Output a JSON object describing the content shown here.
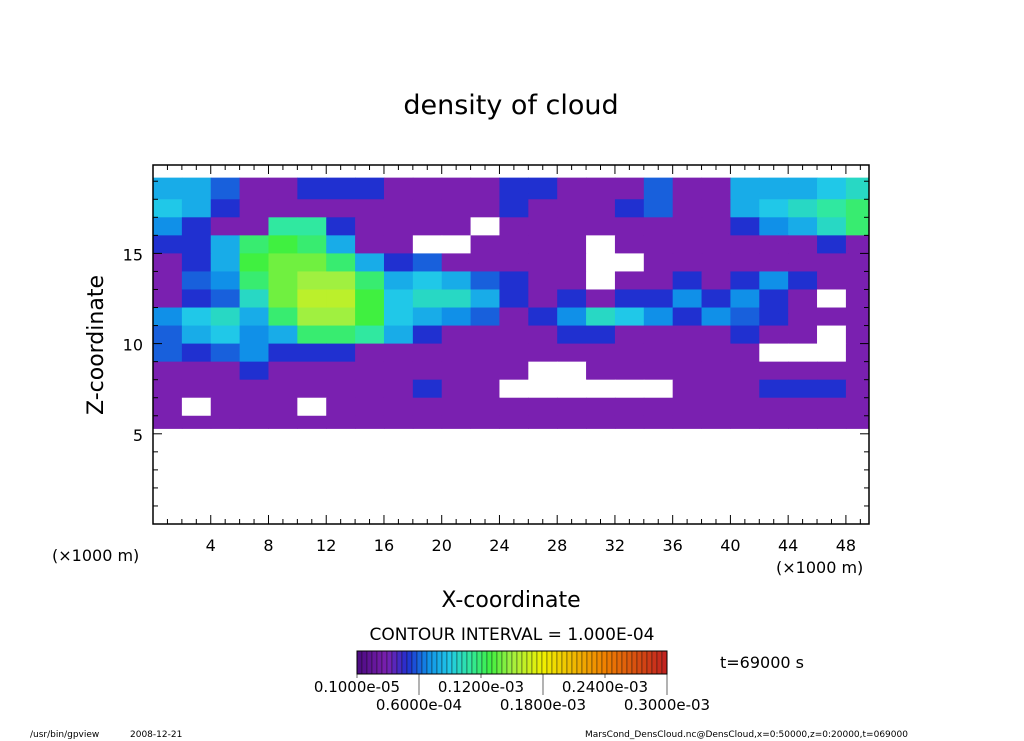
{
  "chart_data": {
    "type": "heatmap",
    "title": "density of cloud",
    "xlabel": "X-coordinate",
    "ylabel": "Z-coordinate",
    "x_unit_label": "(×1000 m)",
    "y_unit_label": "(×1000 m)",
    "xlim": [
      0,
      49.6
    ],
    "ylim": [
      0,
      19.9
    ],
    "x_ticks": [
      4,
      8,
      12,
      16,
      20,
      24,
      28,
      32,
      36,
      40,
      44,
      48
    ],
    "y_ticks": [
      5,
      10,
      15
    ],
    "contour_interval_label": "CONTOUR INTERVAL = 1.000E-04",
    "time_label": "t=69000 s",
    "colorbar": {
      "range": [
        1e-06,
        0.0003
      ],
      "tick_labels": [
        "0.1000e-05",
        "0.6000e-04",
        "0.1200e-03",
        "0.1800e-03",
        "0.2400e-03",
        "0.3000e-03"
      ],
      "colors": [
        "#4a0a80",
        "#7a20b0",
        "#2030d0",
        "#1090e8",
        "#20c8e8",
        "#30e8a0",
        "#40f040",
        "#a0f040",
        "#f0f000",
        "#f08000",
        "#c02020"
      ],
      "color_values": [
        1e-06,
        3e-05,
        5e-05,
        7e-05,
        9e-05,
        0.00011,
        0.00013,
        0.00015,
        0.00018,
        0.00024,
        0.0003
      ]
    },
    "grid": {
      "x_edges_start": 0,
      "x_step": 2,
      "z_rows_top": [
        19.2,
        18,
        17,
        16,
        15,
        14,
        13,
        12,
        11,
        10,
        9,
        8,
        7,
        6
      ],
      "z_rows_bottom": [
        18,
        17,
        16,
        15,
        14,
        13,
        12,
        11,
        10,
        9,
        8,
        7,
        6,
        5.3
      ],
      "values": [
        [
          8e-05,
          8e-05,
          6e-05,
          3e-05,
          3e-05,
          5e-05,
          5e-05,
          5e-05,
          3e-05,
          3e-05,
          3e-05,
          3e-05,
          5e-05,
          5e-05,
          3e-05,
          3e-05,
          3e-05,
          6e-05,
          3e-05,
          3e-05,
          8e-05,
          8e-05,
          8e-05,
          9e-05,
          0.0001
        ],
        [
          9e-05,
          8e-05,
          5e-05,
          3e-05,
          3e-05,
          3e-05,
          3e-05,
          3e-05,
          3e-05,
          3e-05,
          3e-05,
          3e-05,
          5e-05,
          3e-05,
          3e-05,
          3e-05,
          5e-05,
          6e-05,
          3e-05,
          3e-05,
          8e-05,
          9e-05,
          0.0001,
          0.00011,
          0.00012
        ],
        [
          7e-05,
          5e-05,
          3e-05,
          3e-05,
          0.00011,
          0.00011,
          5e-05,
          3e-05,
          3e-05,
          3e-05,
          3e-05,
          0,
          3e-05,
          3e-05,
          3e-05,
          3e-05,
          3e-05,
          3e-05,
          3e-05,
          3e-05,
          5e-05,
          7e-05,
          8e-05,
          0.0001,
          0.00012
        ],
        [
          5e-05,
          5e-05,
          8e-05,
          0.00012,
          0.00013,
          0.00012,
          8e-05,
          3e-05,
          3e-05,
          0,
          0,
          3e-05,
          3e-05,
          3e-05,
          3e-05,
          0,
          3e-05,
          3e-05,
          3e-05,
          3e-05,
          3e-05,
          3e-05,
          3e-05,
          5e-05,
          3e-05
        ],
        [
          3e-05,
          5e-05,
          8e-05,
          0.00013,
          0.00014,
          0.00014,
          0.00012,
          8e-05,
          5e-05,
          6e-05,
          3e-05,
          3e-05,
          3e-05,
          3e-05,
          3e-05,
          0,
          0,
          3e-05,
          3e-05,
          3e-05,
          3e-05,
          3e-05,
          3e-05,
          3e-05,
          3e-05
        ],
        [
          3e-05,
          6e-05,
          7e-05,
          0.00012,
          0.00014,
          0.00015,
          0.00015,
          0.00012,
          8e-05,
          9e-05,
          8e-05,
          6e-05,
          5e-05,
          3e-05,
          3e-05,
          0,
          3e-05,
          3e-05,
          5e-05,
          3e-05,
          5e-05,
          7e-05,
          5e-05,
          3e-05,
          3e-05
        ],
        [
          3e-05,
          5e-05,
          6e-05,
          0.0001,
          0.00014,
          0.00016,
          0.00016,
          0.00013,
          9e-05,
          0.0001,
          0.0001,
          8e-05,
          5e-05,
          3e-05,
          5e-05,
          3e-05,
          5e-05,
          5e-05,
          7e-05,
          5e-05,
          7e-05,
          5e-05,
          3e-05,
          0,
          3e-05
        ],
        [
          7e-05,
          9e-05,
          0.0001,
          8e-05,
          0.00012,
          0.00015,
          0.00015,
          0.00013,
          9e-05,
          8e-05,
          7e-05,
          6e-05,
          3e-05,
          5e-05,
          7e-05,
          0.0001,
          9e-05,
          7e-05,
          5e-05,
          7e-05,
          6e-05,
          5e-05,
          3e-05,
          3e-05,
          3e-05
        ],
        [
          6e-05,
          8e-05,
          9e-05,
          7e-05,
          8e-05,
          0.00012,
          0.00012,
          0.00011,
          8e-05,
          5e-05,
          3e-05,
          3e-05,
          3e-05,
          3e-05,
          5e-05,
          5e-05,
          3e-05,
          3e-05,
          3e-05,
          3e-05,
          5e-05,
          3e-05,
          3e-05,
          0,
          3e-05
        ],
        [
          6e-05,
          5e-05,
          6e-05,
          7e-05,
          5e-05,
          5e-05,
          5e-05,
          3e-05,
          3e-05,
          3e-05,
          3e-05,
          3e-05,
          3e-05,
          3e-05,
          3e-05,
          3e-05,
          3e-05,
          3e-05,
          3e-05,
          3e-05,
          3e-05,
          0,
          0,
          0,
          3e-05
        ],
        [
          3e-05,
          3e-05,
          3e-05,
          5e-05,
          3e-05,
          3e-05,
          3e-05,
          3e-05,
          3e-05,
          3e-05,
          3e-05,
          3e-05,
          3e-05,
          0,
          0,
          3e-05,
          3e-05,
          3e-05,
          3e-05,
          3e-05,
          3e-05,
          3e-05,
          3e-05,
          3e-05,
          3e-05
        ],
        [
          3e-05,
          3e-05,
          3e-05,
          3e-05,
          3e-05,
          3e-05,
          3e-05,
          3e-05,
          3e-05,
          5e-05,
          3e-05,
          3e-05,
          0,
          0,
          0,
          0,
          0,
          0,
          3e-05,
          3e-05,
          3e-05,
          5e-05,
          5e-05,
          5e-05,
          3e-05
        ],
        [
          3e-05,
          0,
          3e-05,
          3e-05,
          3e-05,
          0,
          3e-05,
          3e-05,
          3e-05,
          3e-05,
          3e-05,
          3e-05,
          3e-05,
          3e-05,
          3e-05,
          3e-05,
          3e-05,
          3e-05,
          3e-05,
          3e-05,
          3e-05,
          3e-05,
          3e-05,
          3e-05,
          3e-05
        ],
        [
          3e-05,
          3e-05,
          3e-05,
          3e-05,
          3e-05,
          3e-05,
          3e-05,
          3e-05,
          3e-05,
          3e-05,
          3e-05,
          3e-05,
          3e-05,
          3e-05,
          3e-05,
          3e-05,
          3e-05,
          3e-05,
          3e-05,
          3e-05,
          3e-05,
          3e-05,
          3e-05,
          3e-05,
          3e-05
        ]
      ]
    }
  },
  "footer": {
    "program": "/usr/bin/gpview",
    "date": "2008-12-21",
    "source": "MarsCond_DensCloud.nc@DensCloud,x=0:50000,z=0:20000,t=069000"
  }
}
